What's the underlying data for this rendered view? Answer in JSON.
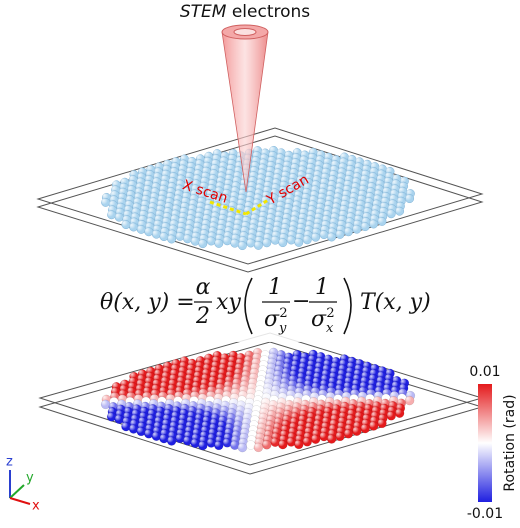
{
  "beam": {
    "label_italic": "STEM",
    "label_rest": " electrons"
  },
  "scan": {
    "x": "X scan",
    "y": "Y scan"
  },
  "formula": {
    "lhs": "θ(x, y) =",
    "alpha": "α",
    "two": "2",
    "xy": "xy",
    "one": "1",
    "sigma": "σ",
    "sub_y": "y",
    "sub_x": "x",
    "sup": "2",
    "minus": "−",
    "rhs": "T(x, y)"
  },
  "colorbar": {
    "max": "0.01",
    "min": "-0.01",
    "label": "Rotation (rad)"
  },
  "axes": {
    "z": "z",
    "y": "y",
    "x": "x"
  }
}
